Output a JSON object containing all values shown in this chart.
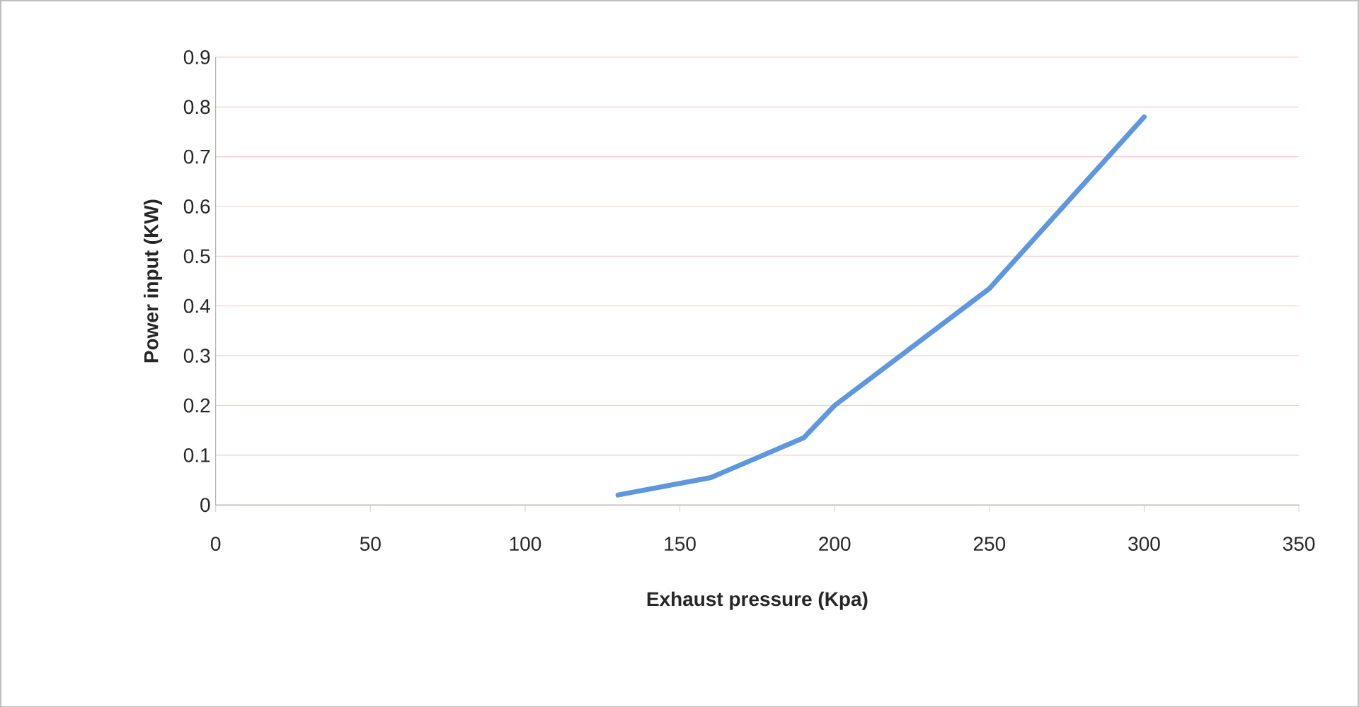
{
  "chart_data": {
    "type": "line",
    "xlabel": "Exhaust pressure (Kpa)",
    "ylabel": "Power input (KW)",
    "xlim": [
      0,
      350
    ],
    "xticks": [
      0,
      50,
      100,
      150,
      200,
      250,
      300,
      350
    ],
    "ylim": [
      0,
      0.9
    ],
    "yticks": [
      0,
      0.1,
      0.2,
      0.3,
      0.4,
      0.5,
      0.6,
      0.7,
      0.8,
      0.9
    ],
    "grid": "y",
    "marker": "none",
    "line_style": "solid",
    "series": [
      {
        "color": "#5f97dd",
        "x": [
          130,
          160,
          190,
          200,
          250,
          300
        ],
        "values": [
          0.02,
          0.055,
          0.135,
          0.2,
          0.435,
          0.78
        ]
      }
    ]
  }
}
